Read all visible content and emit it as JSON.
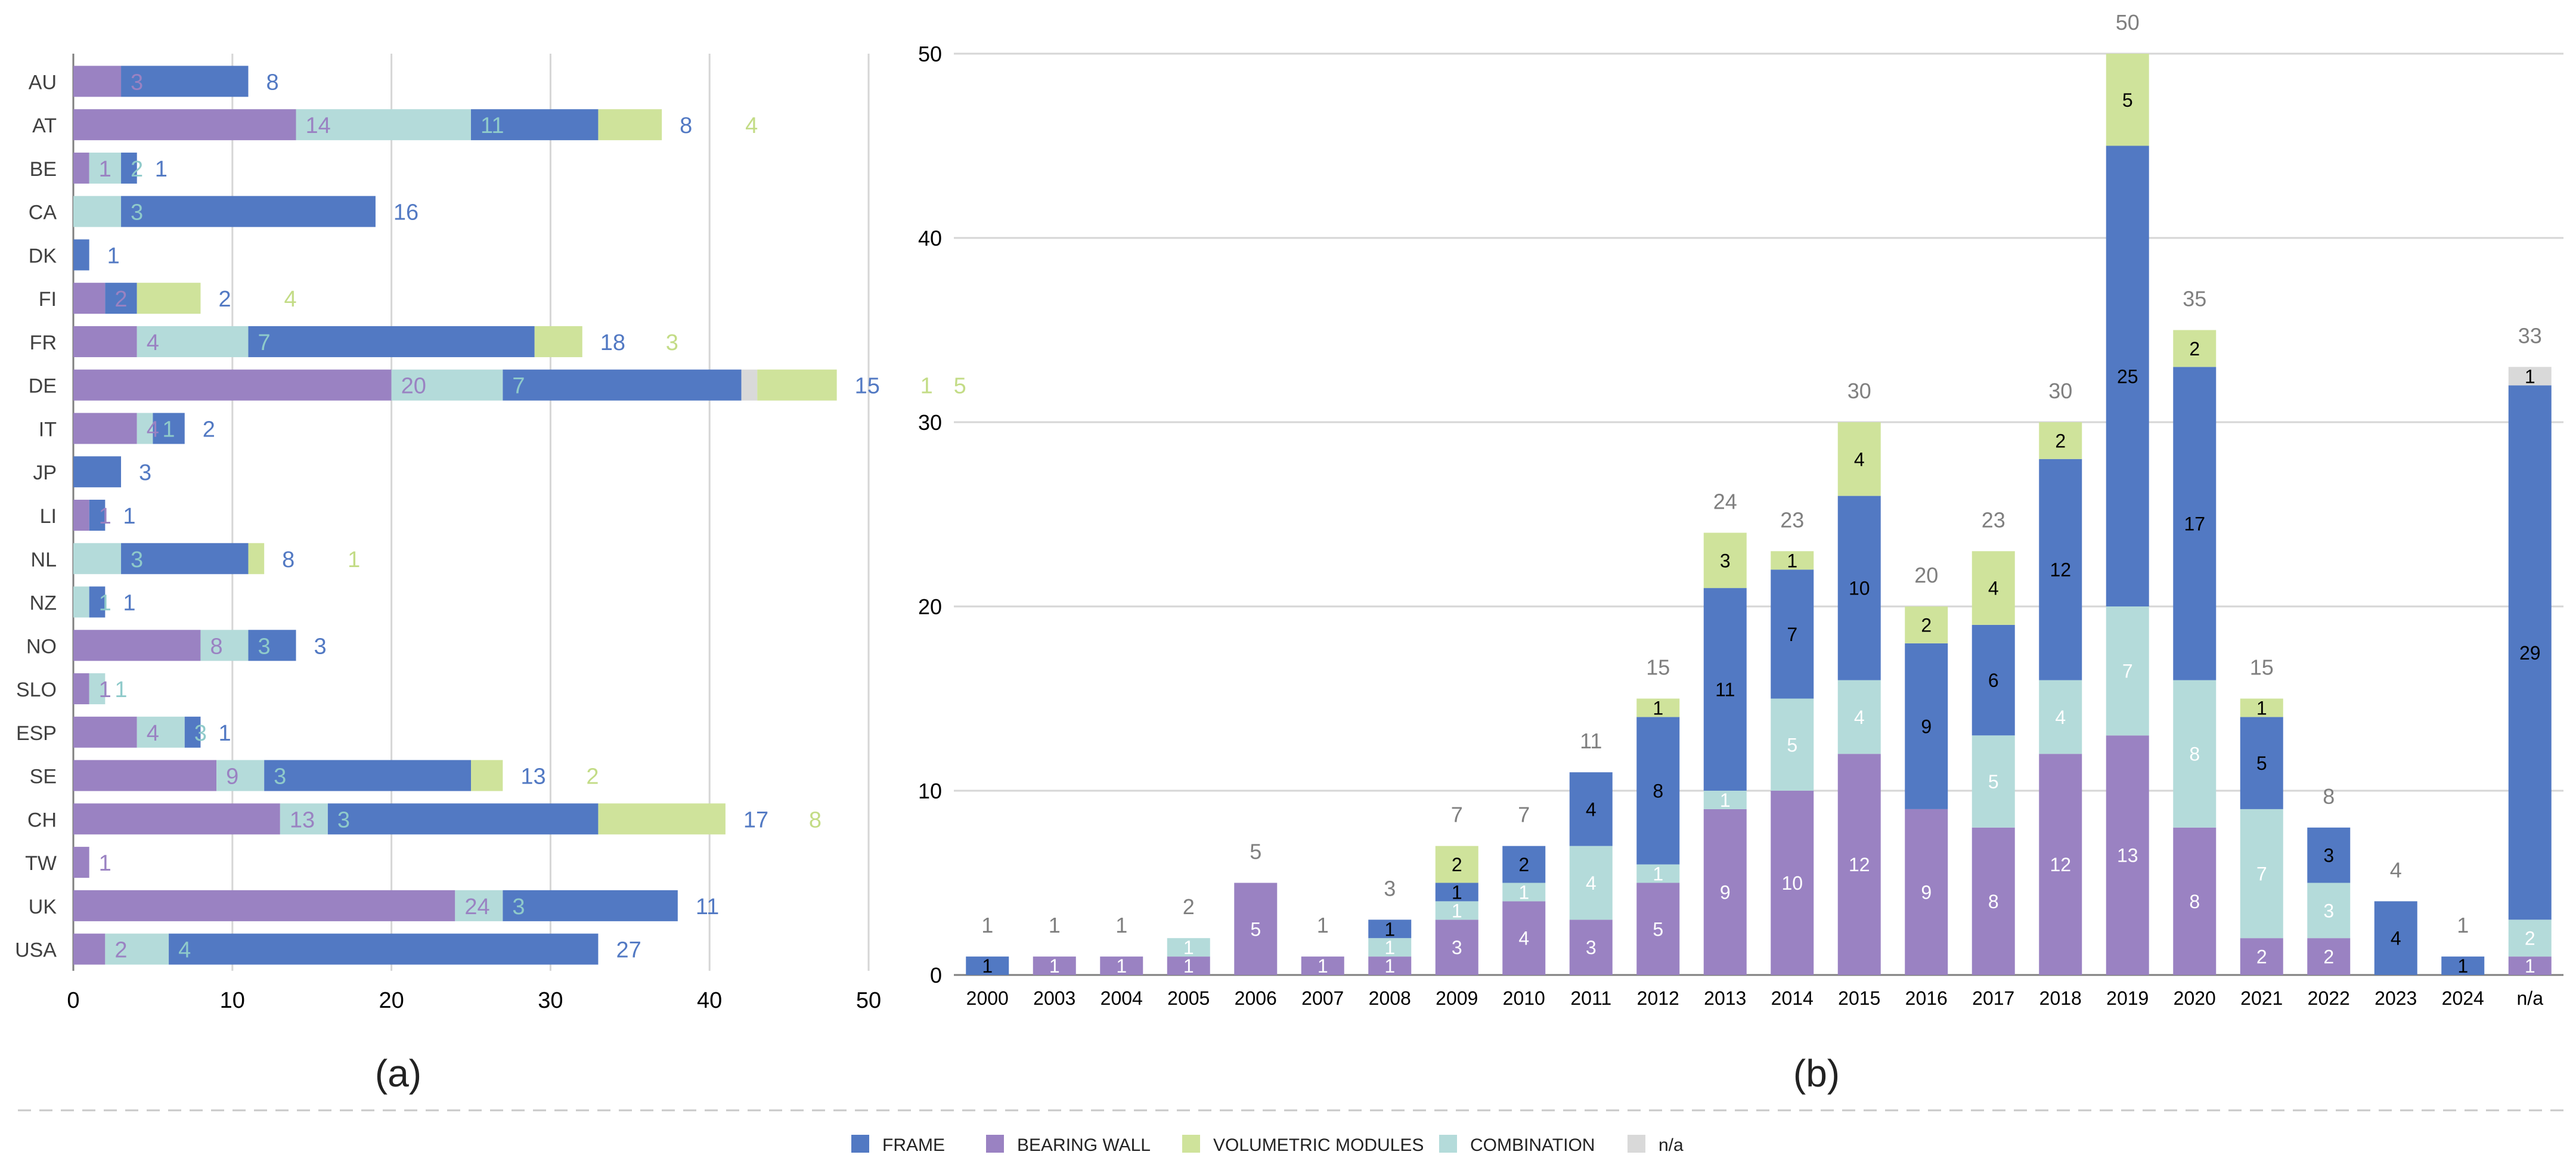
{
  "colors": {
    "FRAME": "#5279C3",
    "BEARING WALL": "#9A82C2",
    "VOLUMETRIC MODULES": "#CFE39B",
    "COMBINATION": "#B4DBDA",
    "n/a": "#D9D9D9",
    "grid": "#D6D6D6",
    "axis": "#7F7F7F",
    "text": "#404040"
  },
  "legend": {
    "items": [
      {
        "key": "FRAME",
        "label": "FRAME"
      },
      {
        "key": "BEARING WALL",
        "label": "BEARING WALL"
      },
      {
        "key": "VOLUMETRIC MODULES",
        "label": "VOLUMETRIC MODULES"
      },
      {
        "key": "COMBINATION",
        "label": "COMBINATION"
      },
      {
        "key": "n/a",
        "label": "n/a"
      }
    ]
  },
  "chart_data": [
    {
      "type": "bar",
      "orientation": "horizontal",
      "stacked": true,
      "caption": "(a)",
      "xlim": [
        0,
        50
      ],
      "xticks": [
        "0",
        "10",
        "20",
        "30",
        "40",
        "50"
      ],
      "grid": true,
      "series_order": [
        "BEARING WALL",
        "COMBINATION",
        "FRAME",
        "n/a",
        "VOLUMETRIC MODULES"
      ],
      "categories": [
        "AU",
        "AT",
        "BE",
        "CA",
        "DK",
        "FI",
        "FR",
        "DE",
        "IT",
        "JP",
        "LI",
        "NL",
        "NZ",
        "NO",
        "SLO",
        "ESP",
        "SE",
        "CH",
        "TW",
        "UK",
        "USA"
      ],
      "series": [
        {
          "name": "BEARING WALL",
          "values": [
            3,
            14,
            1,
            0,
            0,
            2,
            4,
            20,
            4,
            0,
            1,
            0,
            0,
            8,
            1,
            4,
            9,
            13,
            1,
            24,
            2
          ]
        },
        {
          "name": "COMBINATION",
          "values": [
            0,
            11,
            2,
            3,
            0,
            0,
            7,
            7,
            1,
            0,
            0,
            3,
            1,
            3,
            1,
            3,
            3,
            3,
            0,
            3,
            4
          ]
        },
        {
          "name": "FRAME",
          "values": [
            8,
            8,
            1,
            16,
            1,
            2,
            18,
            15,
            2,
            3,
            1,
            8,
            1,
            3,
            0,
            1,
            13,
            17,
            0,
            11,
            27
          ]
        },
        {
          "name": "n/a",
          "values": [
            0,
            0,
            0,
            0,
            0,
            0,
            0,
            1,
            0,
            0,
            0,
            0,
            0,
            0,
            0,
            0,
            0,
            0,
            0,
            0,
            0
          ]
        },
        {
          "name": "VOLUMETRIC MODULES",
          "values": [
            0,
            4,
            0,
            0,
            0,
            4,
            3,
            5,
            0,
            0,
            0,
            1,
            0,
            0,
            0,
            0,
            2,
            8,
            0,
            0,
            0
          ]
        }
      ]
    },
    {
      "type": "bar",
      "orientation": "vertical",
      "stacked": true,
      "caption": "(b)",
      "ylim": [
        0,
        50
      ],
      "yticks": [
        "0",
        "10",
        "20",
        "30",
        "40",
        "50"
      ],
      "grid": true,
      "series_order": [
        "BEARING WALL",
        "COMBINATION",
        "FRAME",
        "VOLUMETRIC MODULES",
        "n/a"
      ],
      "categories": [
        "2000",
        "2003",
        "2004",
        "2005",
        "2006",
        "2007",
        "2008",
        "2009",
        "2010",
        "2011",
        "2012",
        "2013",
        "2014",
        "2015",
        "2016",
        "2017",
        "2018",
        "2019",
        "2020",
        "2021",
        "2022",
        "2023",
        "2024",
        "n/a"
      ],
      "totals": [
        "1",
        "1",
        "1",
        "2",
        "5",
        "1",
        "3",
        "7",
        "7",
        "11",
        "15",
        "24",
        "23",
        "30",
        "20",
        "23",
        "30",
        "50",
        "35",
        "15",
        "8",
        "4",
        "1",
        "33"
      ],
      "series": [
        {
          "name": "BEARING WALL",
          "values": [
            0,
            1,
            1,
            1,
            5,
            1,
            1,
            3,
            4,
            3,
            5,
            9,
            10,
            12,
            9,
            8,
            12,
            13,
            8,
            2,
            2,
            0,
            0,
            1
          ]
        },
        {
          "name": "COMBINATION",
          "values": [
            0,
            0,
            0,
            1,
            0,
            0,
            1,
            1,
            1,
            4,
            1,
            1,
            5,
            4,
            0,
            5,
            4,
            7,
            8,
            7,
            3,
            0,
            0,
            2
          ]
        },
        {
          "name": "FRAME",
          "values": [
            1,
            0,
            0,
            0,
            0,
            0,
            1,
            1,
            2,
            4,
            8,
            11,
            7,
            10,
            9,
            6,
            12,
            25,
            17,
            5,
            3,
            4,
            1,
            29
          ]
        },
        {
          "name": "VOLUMETRIC MODULES",
          "values": [
            0,
            0,
            0,
            0,
            0,
            0,
            0,
            2,
            0,
            0,
            1,
            3,
            1,
            4,
            2,
            4,
            2,
            5,
            2,
            1,
            0,
            0,
            0,
            0
          ]
        },
        {
          "name": "n/a",
          "values": [
            0,
            0,
            0,
            0,
            0,
            0,
            0,
            0,
            0,
            0,
            0,
            0,
            0,
            0,
            0,
            0,
            0,
            0,
            0,
            0,
            0,
            0,
            0,
            1
          ]
        }
      ]
    }
  ]
}
